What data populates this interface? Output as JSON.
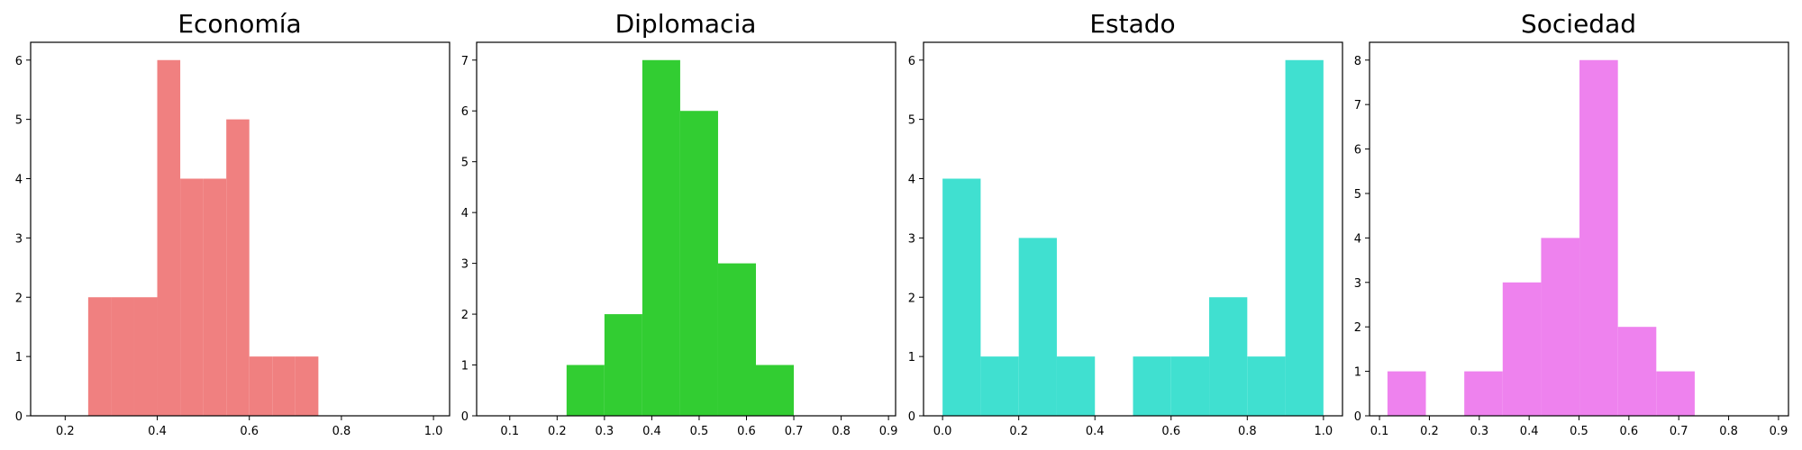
{
  "chart_data": [
    {
      "type": "bar",
      "title": "Economía",
      "color": "#f08080",
      "xlim": [
        0.125,
        1.035
      ],
      "ylim": [
        0,
        6.3
      ],
      "xticks": [
        0.2,
        0.4,
        0.6,
        0.8,
        1.0
      ],
      "xtick_labels": [
        "0.2",
        "0.4",
        "0.6",
        "0.8",
        "1.0"
      ],
      "yticks": [
        0,
        1,
        2,
        3,
        4,
        5,
        6
      ],
      "ytick_labels": [
        "0",
        "1",
        "2",
        "3",
        "4",
        "5",
        "6"
      ],
      "bin_edges": [
        0.25,
        0.3,
        0.35,
        0.4,
        0.45,
        0.5,
        0.55,
        0.6,
        0.65,
        0.7,
        0.75
      ],
      "counts": [
        2,
        2,
        2,
        6,
        4,
        4,
        5,
        1,
        1,
        1
      ]
    },
    {
      "type": "bar",
      "title": "Diplomacia",
      "color": "#32cd32",
      "xlim": [
        0.03,
        0.915
      ],
      "ylim": [
        0,
        7.35
      ],
      "xticks": [
        0.1,
        0.2,
        0.3,
        0.4,
        0.5,
        0.6,
        0.7,
        0.8,
        0.9
      ],
      "xtick_labels": [
        "0.1",
        "0.2",
        "0.3",
        "0.4",
        "0.5",
        "0.6",
        "0.7",
        "0.8",
        "0.9"
      ],
      "yticks": [
        0,
        1,
        2,
        3,
        4,
        5,
        6,
        7
      ],
      "ytick_labels": [
        "0",
        "1",
        "2",
        "3",
        "4",
        "5",
        "6",
        "7"
      ],
      "bin_edges": [
        0.22,
        0.3,
        0.38,
        0.46,
        0.54,
        0.62,
        0.7
      ],
      "counts": [
        1,
        2,
        7,
        6,
        3,
        1
      ]
    },
    {
      "type": "bar",
      "title": "Estado",
      "color": "#40e0d0",
      "xlim": [
        -0.05,
        1.05
      ],
      "ylim": [
        0,
        6.3
      ],
      "xticks": [
        0.0,
        0.2,
        0.4,
        0.6,
        0.8,
        1.0
      ],
      "xtick_labels": [
        "0.0",
        "0.2",
        "0.4",
        "0.6",
        "0.8",
        "1.0"
      ],
      "yticks": [
        0,
        1,
        2,
        3,
        4,
        5,
        6
      ],
      "ytick_labels": [
        "0",
        "1",
        "2",
        "3",
        "4",
        "5",
        "6"
      ],
      "bin_edges": [
        0.0,
        0.1,
        0.2,
        0.3,
        0.4,
        0.5,
        0.6,
        0.7,
        0.8,
        0.9,
        1.0
      ],
      "counts": [
        4,
        1,
        3,
        1,
        0,
        1,
        1,
        2,
        1,
        6
      ]
    },
    {
      "type": "bar",
      "title": "Sociedad",
      "color": "#ee82ee",
      "xlim": [
        0.08,
        0.92
      ],
      "ylim": [
        0,
        8.4
      ],
      "xticks": [
        0.1,
        0.2,
        0.3,
        0.4,
        0.5,
        0.6,
        0.7,
        0.8,
        0.9
      ],
      "xtick_labels": [
        "0.1",
        "0.2",
        "0.3",
        "0.4",
        "0.5",
        "0.6",
        "0.7",
        "0.8",
        "0.9"
      ],
      "yticks": [
        0,
        1,
        2,
        3,
        4,
        5,
        6,
        7,
        8
      ],
      "ytick_labels": [
        "0",
        "1",
        "2",
        "3",
        "4",
        "5",
        "6",
        "7",
        "8"
      ],
      "bin_edges": [
        0.116,
        0.193,
        0.27,
        0.347,
        0.424,
        0.501,
        0.578,
        0.655,
        0.732
      ],
      "counts": [
        1,
        0,
        1,
        3,
        4,
        8,
        2,
        1
      ]
    }
  ]
}
